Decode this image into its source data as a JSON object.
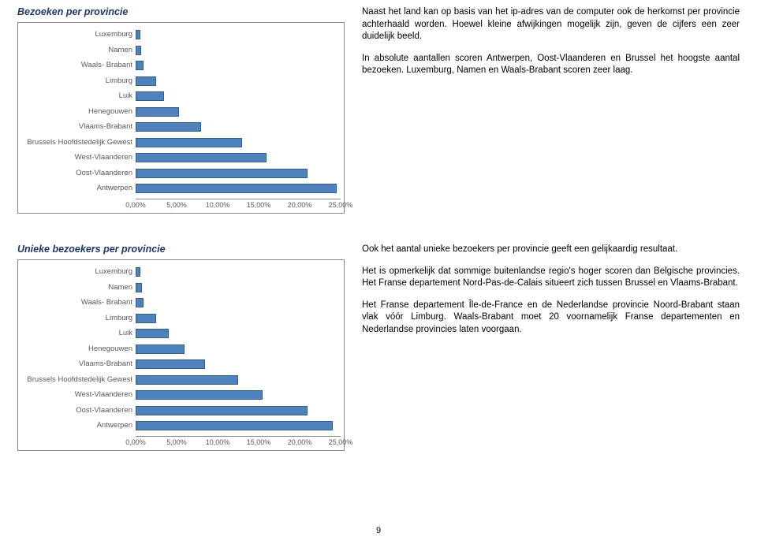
{
  "section1": {
    "title": "Bezoeken per provincie",
    "chart": {
      "categories": [
        "Luxemburg",
        "Namen",
        "Waals- Brabant",
        "Limburg",
        "Luik",
        "Henegouwen",
        "Vlaams-Brabant",
        "Brussels Hoofdstedelijk Gewest",
        "West-Vlaanderen",
        "Oost-Vlaanderen",
        "Antwerpen"
      ],
      "values": [
        0.6,
        0.7,
        1.0,
        2.5,
        3.5,
        5.3,
        8.0,
        13.0,
        16.0,
        21.0,
        24.5
      ],
      "xmax": 25.0,
      "ticks": [
        "0,00%",
        "5,00%",
        "10,00%",
        "15,00%",
        "20,00%",
        "25,00%"
      ],
      "tick_positions": [
        0,
        20,
        40,
        60,
        80,
        100
      ],
      "bar_color": "#4f81bd"
    },
    "paragraphs": [
      "Naast het land kan op basis van het ip-adres van de computer ook de herkomst per provincie achterhaald worden. Hoewel kleine afwijkingen mogelijk zijn, geven de cijfers een zeer duidelijk beeld.",
      "In absolute aantallen scoren Antwerpen, Oost-Vlaanderen en Brussel het hoogste aantal bezoeken. Luxemburg, Namen en Waals-Brabant scoren zeer laag."
    ]
  },
  "section2": {
    "title": "Unieke bezoekers per provincie",
    "chart": {
      "categories": [
        "Luxemburg",
        "Namen",
        "Waals- Brabant",
        "Limburg",
        "Luik",
        "Henegouwen",
        "Vlaams-Brabant",
        "Brussels Hoofdstedelijk Gewest",
        "West-Vlaanderen",
        "Oost-Vlaanderen",
        "Antwerpen"
      ],
      "values": [
        0.6,
        0.8,
        1.0,
        2.5,
        4.0,
        6.0,
        8.5,
        12.5,
        15.5,
        21.0,
        24.0
      ],
      "xmax": 25.0,
      "ticks": [
        "0,00%",
        "5,00%",
        "10,00%",
        "15,00%",
        "20,00%",
        "25,00%"
      ],
      "tick_positions": [
        0,
        20,
        40,
        60,
        80,
        100
      ],
      "bar_color": "#4f81bd"
    },
    "paragraphs": [
      "Ook het aantal unieke bezoekers per provincie geeft een gelijkaardig resultaat.",
      "Het is opmerkelijk dat sommige buitenlandse regio's hoger scoren dan Belgische provincies. Het Franse departement Nord-Pas-de-Calais situeert zich tussen Brussel en Vlaams-Brabant.",
      "Het Franse departement Île-de-France en de Nederlandse provincie Noord-Brabant staan vlak vóór Limburg. Waals-Brabant moet 20 voornamelijk Franse departementen en Nederlandse provincies laten voorgaan."
    ]
  },
  "page_number": "9"
}
